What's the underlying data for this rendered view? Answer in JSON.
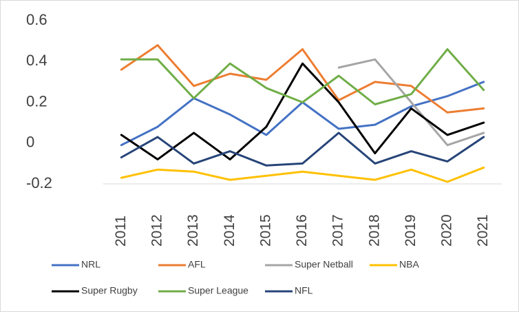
{
  "chart_data": {
    "type": "line",
    "categories": [
      "2011",
      "2012",
      "2013",
      "2014",
      "2015",
      "2016",
      "2017",
      "2018",
      "2019",
      "2020",
      "2021"
    ],
    "ylim": [
      -0.2,
      0.6
    ],
    "yticks": [
      0.6,
      0.4,
      0.2,
      0,
      -0.2
    ],
    "series": [
      {
        "name": "NRL",
        "color": "#4472c4",
        "values": [
          -0.01,
          0.08,
          0.22,
          0.14,
          0.04,
          0.2,
          0.07,
          0.09,
          0.18,
          0.23,
          0.3
        ]
      },
      {
        "name": "AFL",
        "color": "#ed7d31",
        "values": [
          0.36,
          0.48,
          0.28,
          0.34,
          0.31,
          0.46,
          0.21,
          0.3,
          0.28,
          0.15,
          0.17
        ]
      },
      {
        "name": "Super Netball",
        "color": "#a5a5a5",
        "values": [
          null,
          null,
          null,
          null,
          null,
          null,
          0.37,
          0.41,
          0.2,
          -0.01,
          0.05
        ]
      },
      {
        "name": "NBA",
        "color": "#ffc000",
        "values": [
          -0.17,
          -0.13,
          -0.14,
          -0.18,
          -0.16,
          -0.14,
          -0.16,
          -0.18,
          -0.13,
          -0.19,
          -0.12
        ]
      },
      {
        "name": "Super Rugby",
        "color": "#000000",
        "values": [
          0.04,
          -0.08,
          0.05,
          -0.08,
          0.08,
          0.39,
          0.2,
          -0.05,
          0.17,
          0.04,
          0.1
        ]
      },
      {
        "name": "Super League",
        "color": "#70ad47",
        "values": [
          0.41,
          0.41,
          0.22,
          0.39,
          0.27,
          0.2,
          0.33,
          0.19,
          0.24,
          0.46,
          0.26
        ]
      },
      {
        "name": "NFL",
        "color": "#264478",
        "values": [
          -0.07,
          0.03,
          -0.1,
          -0.04,
          -0.11,
          -0.1,
          0.05,
          -0.1,
          -0.04,
          -0.09,
          0.03
        ]
      }
    ]
  }
}
